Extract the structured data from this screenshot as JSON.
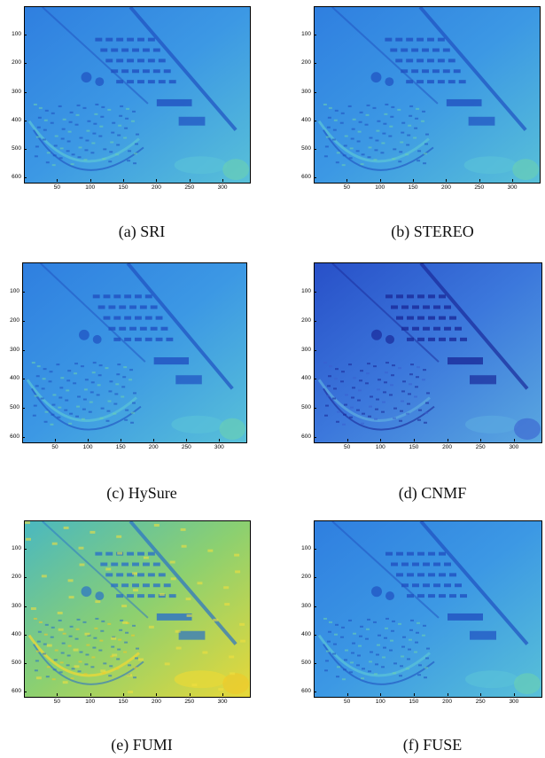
{
  "figure": {
    "panels": [
      {
        "id": "a",
        "caption": "(a) SRI",
        "scheme": "blue"
      },
      {
        "id": "b",
        "caption": "(b) STEREO",
        "scheme": "blue"
      },
      {
        "id": "c",
        "caption": "(c) HySure",
        "scheme": "blue"
      },
      {
        "id": "d",
        "caption": "(d) CNMF",
        "scheme": "darkblue"
      },
      {
        "id": "e",
        "caption": "(e) FUMI",
        "scheme": "yellow"
      },
      {
        "id": "f",
        "caption": "(f) FUSE",
        "scheme": "blue"
      }
    ],
    "y_ticks": [
      "100",
      "200",
      "300",
      "400",
      "500",
      "600"
    ],
    "x_ticks": [
      "50",
      "100",
      "150",
      "200",
      "250",
      "300"
    ],
    "colormap": [
      "#1a2bb8",
      "#2a6ee0",
      "#3fa0e8",
      "#5ac8c8",
      "#a0d060",
      "#f0d030"
    ]
  }
}
